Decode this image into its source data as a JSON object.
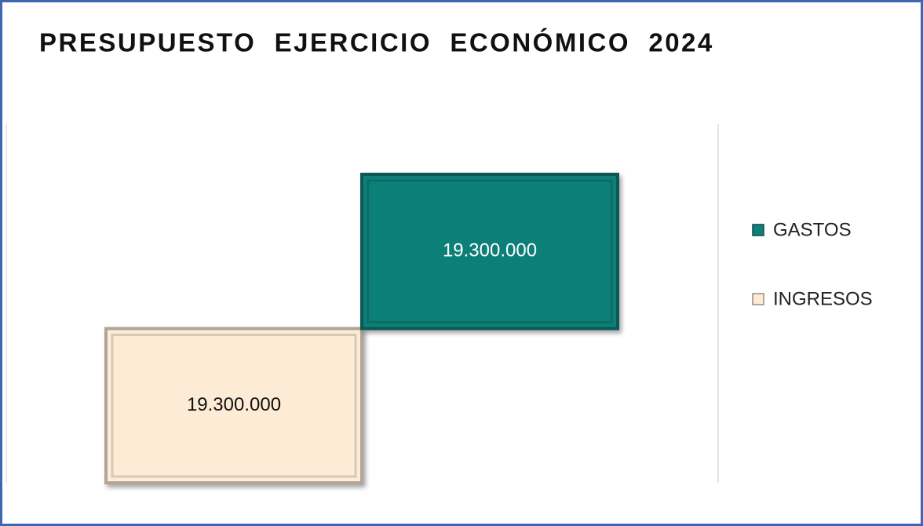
{
  "chart_data": {
    "type": "bar",
    "orientation": "horizontal",
    "stacked": true,
    "title": "PRESUPUESTO  EJERCICIO  ECONÓMICO  2024",
    "series": [
      {
        "name": "INGRESOS",
        "color": "#fdebd6",
        "values": [
          19300000
        ],
        "value_labels": [
          "19.300.000"
        ]
      },
      {
        "name": "GASTOS",
        "color": "#117f79",
        "values": [
          19300000
        ],
        "value_labels": [
          "19.300.000"
        ]
      }
    ],
    "legend_series_order": [
      1,
      0
    ],
    "legend": "right"
  }
}
